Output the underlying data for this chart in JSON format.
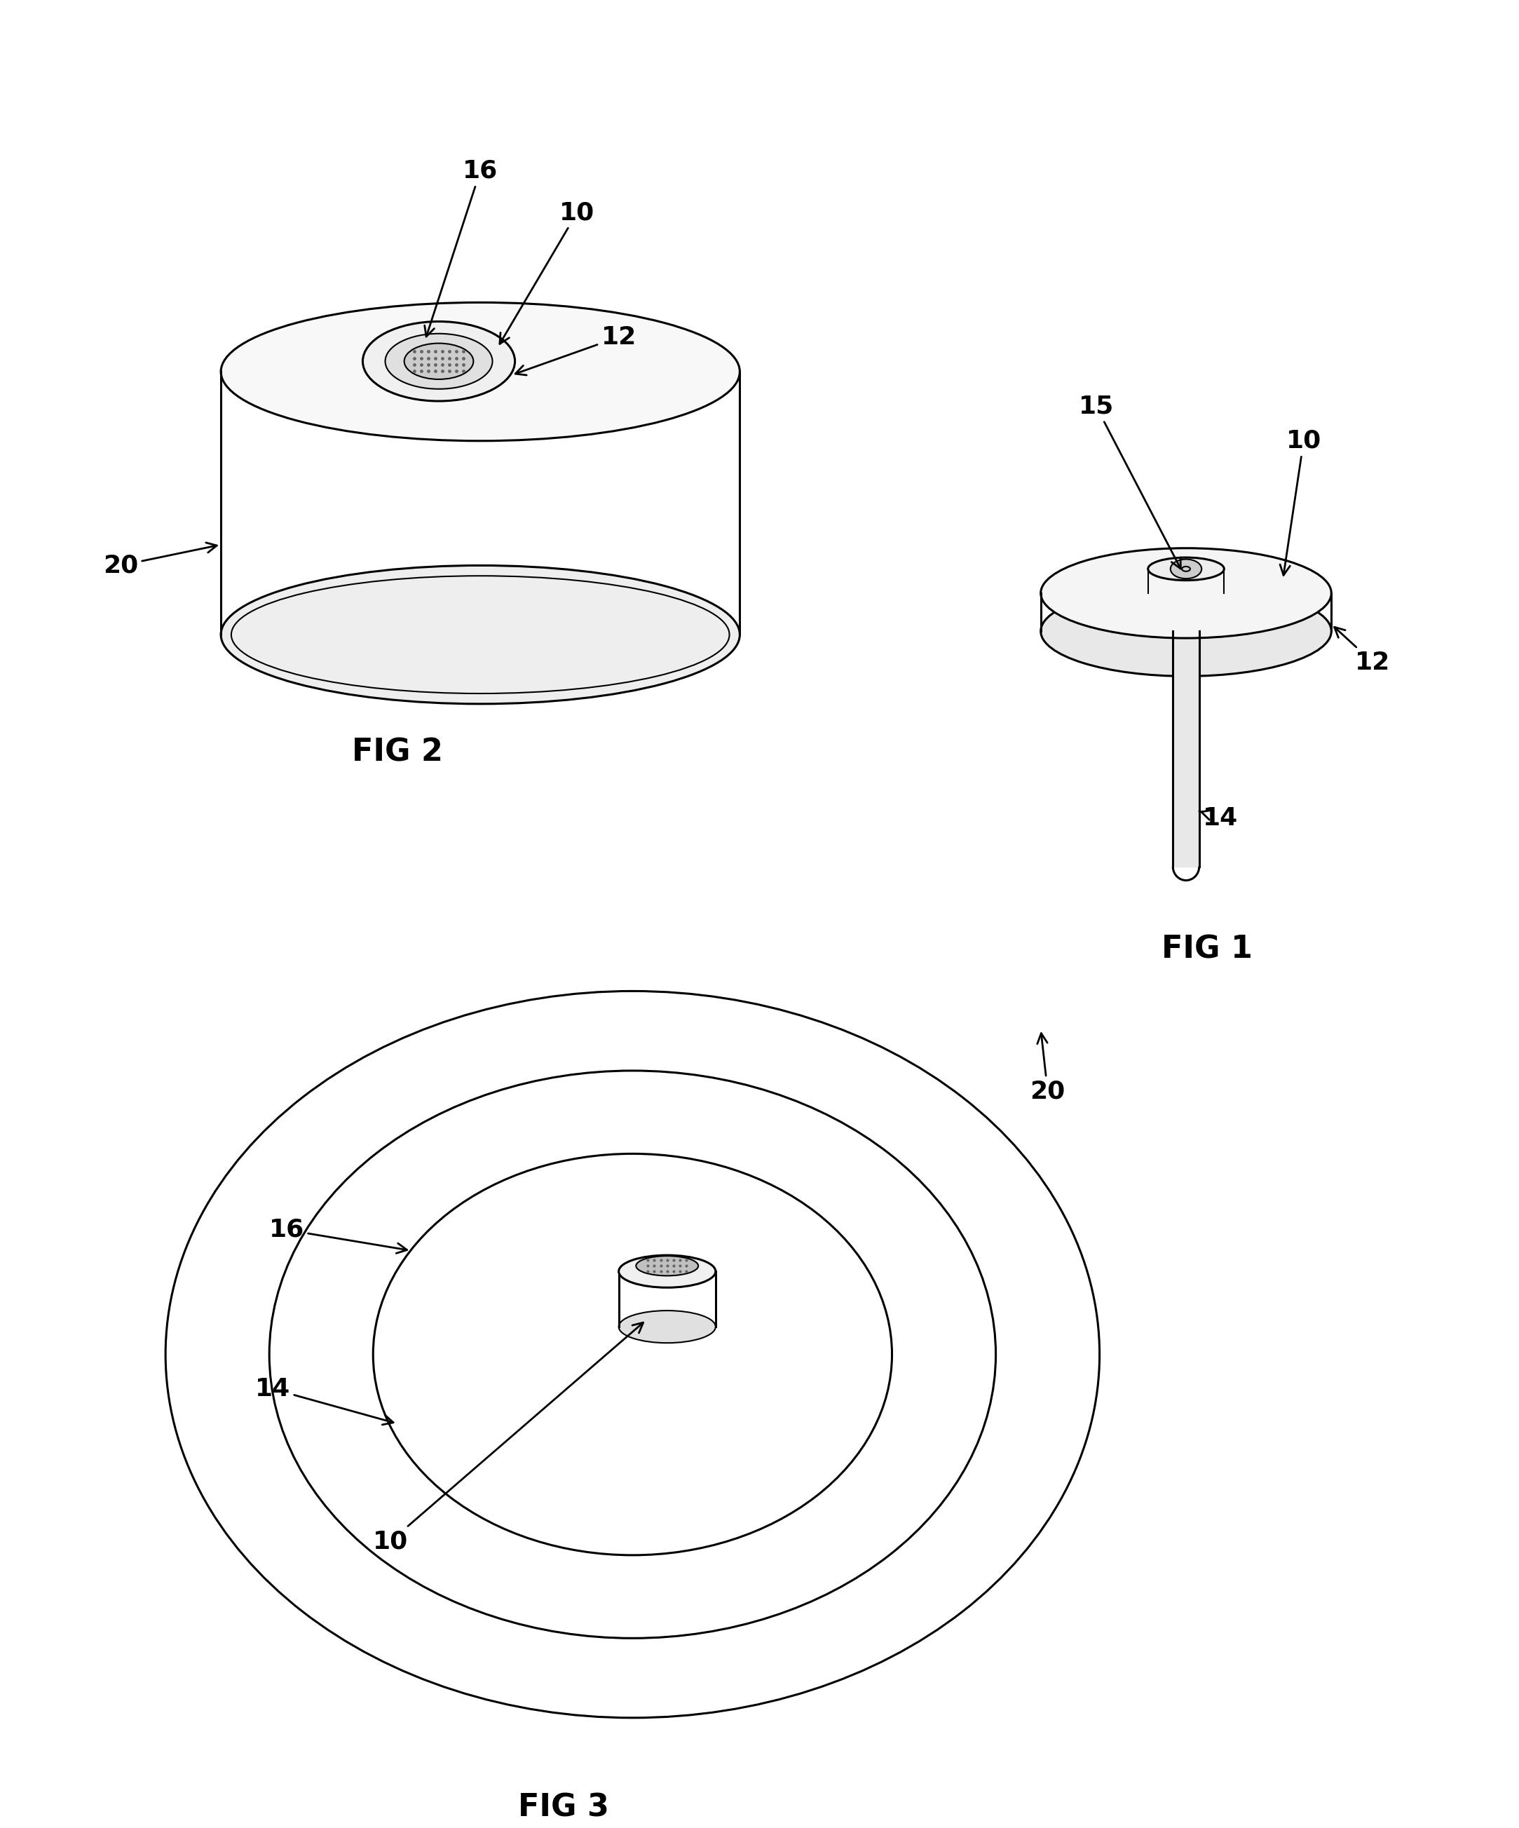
{
  "bg_color": "#ffffff",
  "line_color": "#000000",
  "line_width": 2.2,
  "thin_line": 1.5,
  "fig2_label": "FIG 2",
  "fig1_label": "FIG 1",
  "fig3_label": "FIG 3",
  "font_size_label": 32,
  "font_size_ref": 26
}
